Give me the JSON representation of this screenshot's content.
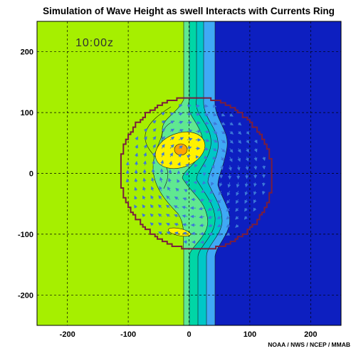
{
  "chart_data": {
    "type": "heatmap",
    "title": "Simulation of Wave Height as swell Interacts with Currents Ring",
    "time_label": "10:00z",
    "credit": "NOAA / NWS / NCEP / MMAB",
    "xlim": [
      -250,
      250
    ],
    "ylim": [
      -250,
      250
    ],
    "x_ticks": [
      -200,
      -100,
      0,
      100,
      200
    ],
    "y_ticks": [
      200,
      100,
      0,
      -100,
      -200
    ],
    "grid": true,
    "ring": {
      "center": [
        12,
        0
      ],
      "radius": 125
    },
    "wave_height_bands": [
      "#A6EF00",
      "#FFF100",
      "#FFA500",
      "#60E890",
      "#00D6A6",
      "#00C7C7",
      "#3FA9F5",
      "#0D1FC0"
    ],
    "colors": {
      "ring_outline": "#7A1E3C",
      "current_arrows": "#3C78D8",
      "grid": "#000000",
      "contour": "#1a1a1a"
    }
  }
}
